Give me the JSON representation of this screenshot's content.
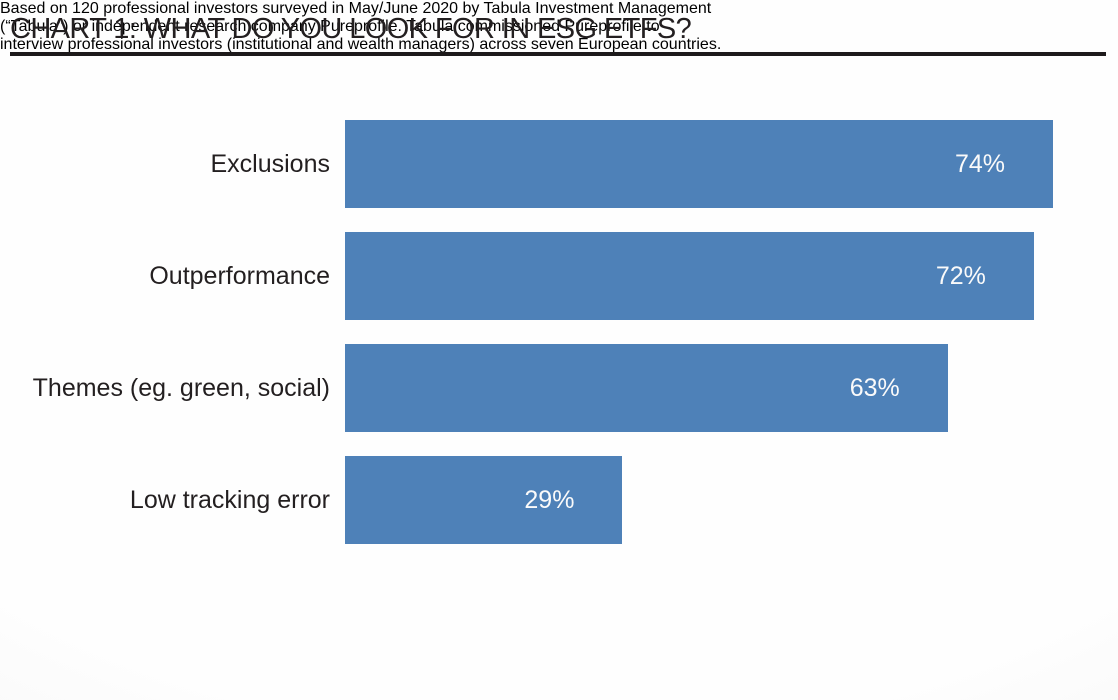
{
  "chart_data": {
    "type": "bar",
    "orientation": "horizontal",
    "title": "CHART 1: WHAT DO YOU LOOK FOR IN ESG ETFS?",
    "categories": [
      "Exclusions",
      "Outperformance",
      "Themes (eg. green, social)",
      "Low tracking error"
    ],
    "values": [
      74,
      72,
      63,
      29
    ],
    "value_labels": [
      "74%",
      "72%",
      "63%",
      "29%"
    ],
    "unit": "%",
    "xlim": [
      0,
      74
    ],
    "grid": false,
    "legend": false,
    "bar_color": "#4e81b8",
    "value_label_color": "#fafafa",
    "category_label_color": "#231f20"
  },
  "footer": {
    "lines": [
      "Based on 120 professional investors surveyed in May/June 2020 by Tabula Investment Management",
      "(“Tabula”) or independent research company Pureprofile. Tabula commissioned Pureprofile to",
      "interview professional investors (institutional and wealth managers) across seven European countries."
    ],
    "full_text": "Based on 120 professional investors surveyed in May/June 2020 by Tabula Investment Management (“Tabula”) or independent research company Pureprofile. Tabula commissioned Pureprofile to interview professional investors (institutional and wealth managers) across seven European countries."
  },
  "colors": {
    "title_text": "#231f20",
    "underline": "#1d1a1b",
    "footer_text": "#3e3e3e",
    "background_edge": "#ededed",
    "background_center": "#fefefe"
  }
}
